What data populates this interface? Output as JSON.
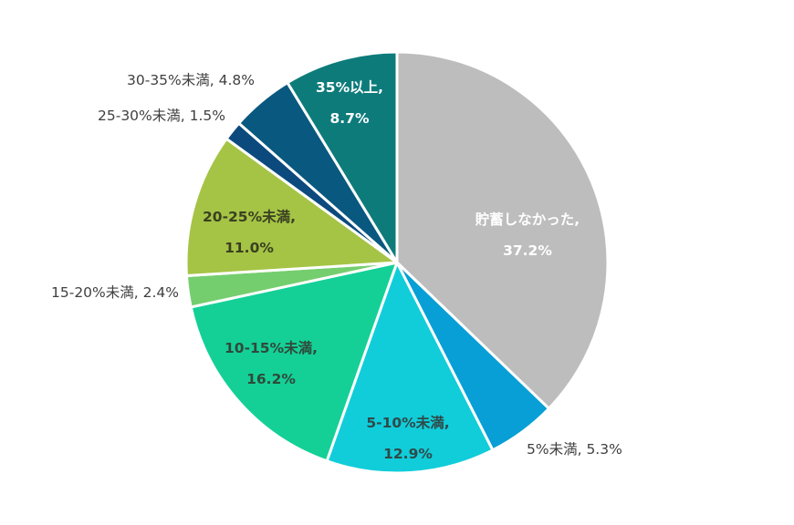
{
  "chart_data": {
    "type": "pie",
    "title": "",
    "start_angle_deg": 0,
    "direction": "clockwise",
    "slices": [
      {
        "name": "貯蓄しなかった",
        "value": 37.2,
        "label": "貯蓄しなかった,",
        "value_label": "37.2%",
        "color": "#bdbdbd",
        "text_color": "#ffffff",
        "label_pos": "inside"
      },
      {
        "name": "5%未満",
        "value": 5.3,
        "label": "5%未満, 5.3%",
        "color": "#079fd6",
        "text_color": "#404040",
        "label_pos": "outside"
      },
      {
        "name": "5-10%未満",
        "value": 12.9,
        "label": "5-10%未満,",
        "value_label": "12.9%",
        "color": "#10cdd9",
        "text_color": "#2f4a4a",
        "label_pos": "inside"
      },
      {
        "name": "10-15%未満",
        "value": 16.2,
        "label": "10-15%未満,",
        "value_label": "16.2%",
        "color": "#14d097",
        "text_color": "#2f4a3a",
        "label_pos": "inside"
      },
      {
        "name": "15-20%未満",
        "value": 2.4,
        "label": "15-20%未満, 2.4%",
        "color": "#74ce6e",
        "text_color": "#404040",
        "label_pos": "outside"
      },
      {
        "name": "20-25%未満",
        "value": 11.0,
        "label": "20-25%未満,",
        "value_label": "11.0%",
        "color": "#a5c446",
        "text_color": "#3a4020",
        "label_pos": "inside"
      },
      {
        "name": "25-30%未満",
        "value": 1.5,
        "label": "25-30%未満, 1.5%",
        "color": "#0c4a7e",
        "text_color": "#404040",
        "label_pos": "outside"
      },
      {
        "name": "30-35%未満",
        "value": 4.8,
        "label": "30-35%未満, 4.8%",
        "color": "#09587f",
        "text_color": "#404040",
        "label_pos": "outside"
      },
      {
        "name": "35%以上",
        "value": 8.7,
        "label": "35%以上,",
        "value_label": "8.7%",
        "color": "#0e7b7b",
        "text_color": "#ffffff",
        "label_pos": "inside"
      }
    ],
    "legend": "none",
    "data_labels": "category, percentage"
  }
}
